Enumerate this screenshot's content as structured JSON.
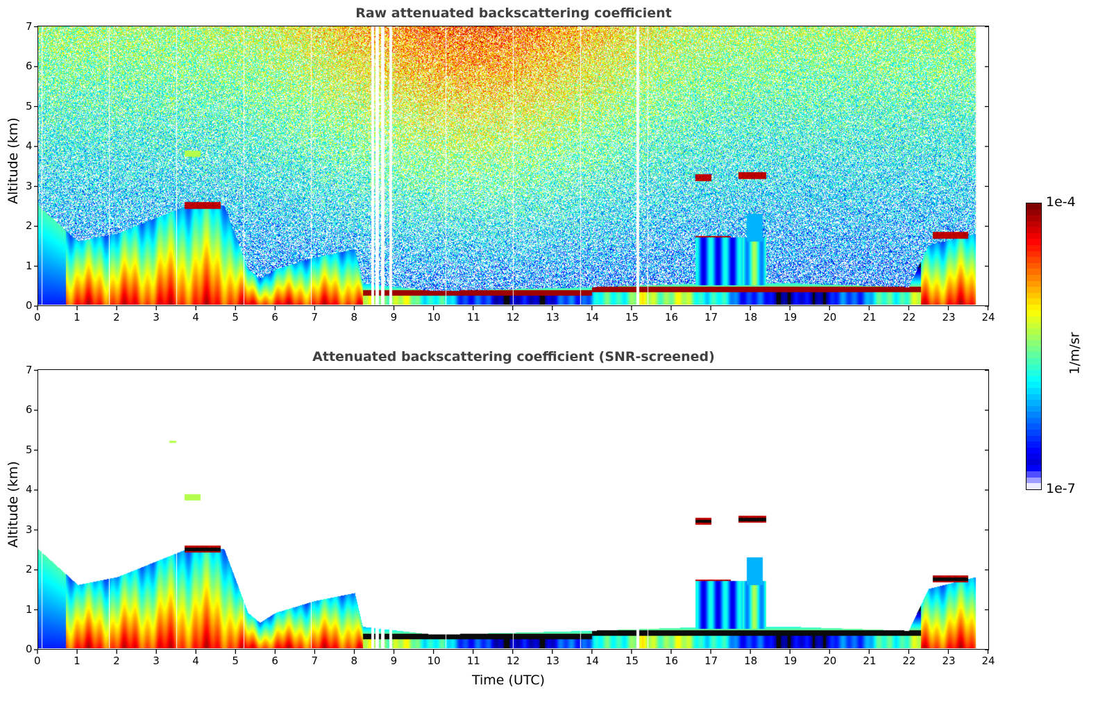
{
  "chart_data": [
    {
      "type": "heatmap",
      "title": "Raw attenuated backscattering coefficient",
      "xlabel": "",
      "ylabel": "Altitude (km)",
      "xlim": [
        0,
        24
      ],
      "ylim": [
        0,
        7
      ],
      "xticks": [
        "0",
        "1",
        "2",
        "3",
        "4",
        "5",
        "6",
        "7",
        "8",
        "9",
        "10",
        "11",
        "12",
        "13",
        "14",
        "15",
        "16",
        "17",
        "18",
        "19",
        "20",
        "21",
        "22",
        "23",
        "24"
      ],
      "yticks": [
        "0",
        "1",
        "2",
        "3",
        "4",
        "5",
        "6",
        "7"
      ],
      "screened": false,
      "features": {
        "data_end_time": 23.7,
        "boundary_layer_top_km": [
          [
            0,
            2.5
          ],
          [
            1,
            1.6
          ],
          [
            2,
            1.8
          ],
          [
            3,
            2.2
          ],
          [
            4,
            2.6
          ],
          [
            4.7,
            2.5
          ],
          [
            5.3,
            0.9
          ],
          [
            5.6,
            0.65
          ],
          [
            6,
            0.9
          ],
          [
            7,
            1.2
          ],
          [
            8,
            1.4
          ],
          [
            8.2,
            0.55
          ],
          [
            10,
            0.35
          ],
          [
            14,
            0.45
          ],
          [
            17,
            0.55
          ],
          [
            19,
            0.55
          ],
          [
            22,
            0.45
          ],
          [
            22.5,
            1.5
          ],
          [
            23.7,
            1.8
          ]
        ],
        "cloud_layers": [
          {
            "t0": 3.7,
            "t1": 4.6,
            "alt_km": 2.5
          },
          {
            "t0": 16.6,
            "t1": 17.5,
            "alt_km": 1.65
          },
          {
            "t0": 17.7,
            "t1": 18.4,
            "alt_km": 3.25
          },
          {
            "t0": 16.6,
            "t1": 17.0,
            "alt_km": 3.2
          },
          {
            "t0": 22.6,
            "t1": 23.5,
            "alt_km": 1.75
          }
        ],
        "gap_times": [
          8.45,
          8.55,
          8.7,
          8.9,
          15.15
        ]
      }
    },
    {
      "type": "heatmap",
      "title": "Attenuated backscattering coefficient (SNR-screened)",
      "xlabel": "Time (UTC)",
      "ylabel": "Altitude (km)",
      "xlim": [
        0,
        24
      ],
      "ylim": [
        0,
        7
      ],
      "xticks": [
        "0",
        "1",
        "2",
        "3",
        "4",
        "5",
        "6",
        "7",
        "8",
        "9",
        "10",
        "11",
        "12",
        "13",
        "14",
        "15",
        "16",
        "17",
        "18",
        "19",
        "20",
        "21",
        "22",
        "23",
        "24"
      ],
      "yticks": [
        "0",
        "1",
        "2",
        "3",
        "4",
        "5",
        "6",
        "7"
      ],
      "screened": true
    }
  ],
  "colorbar": {
    "colormap": "jet",
    "min_label": "1e-7",
    "max_label": "1e-4",
    "unit": "1/m/sr",
    "scale": "log"
  }
}
